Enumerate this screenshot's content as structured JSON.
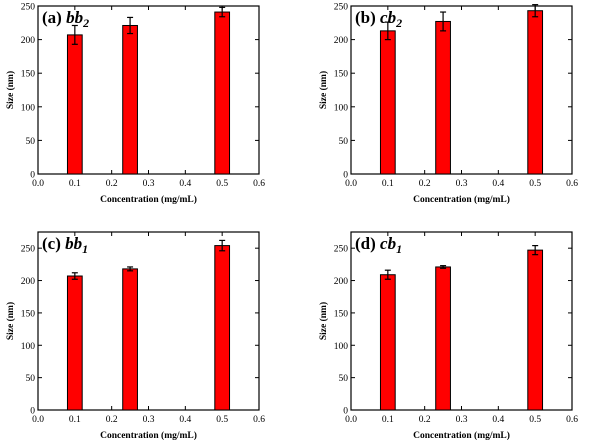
{
  "colors": {
    "bar": "#ff0000",
    "bar_edge": "#000000",
    "axis": "#000000",
    "background": "#ffffff"
  },
  "chart_data": [
    {
      "type": "bar",
      "title": {
        "prefix": "(a) ",
        "base": "bb",
        "subscript": "2"
      },
      "xlabel": "Concentration (mg/mL)",
      "ylabel": "Size (nm)",
      "xlim": [
        0.0,
        0.6
      ],
      "ylim": [
        0,
        250
      ],
      "xticks": [
        "0.0",
        "0.1",
        "0.2",
        "0.3",
        "0.4",
        "0.5",
        "0.6"
      ],
      "yticks": [
        "0",
        "50",
        "100",
        "150",
        "200",
        "250"
      ],
      "grid": false,
      "bar_width": 0.04,
      "x": [
        0.1,
        0.25,
        0.5
      ],
      "values": [
        207,
        221,
        241
      ],
      "errors": [
        14,
        12,
        7
      ]
    },
    {
      "type": "bar",
      "title": {
        "prefix": "(b) ",
        "base": "cb",
        "subscript": "2"
      },
      "xlabel": "Concentration (mg/mL)",
      "ylabel": "Size (nm)",
      "xlim": [
        0.0,
        0.6
      ],
      "ylim": [
        0,
        250
      ],
      "xticks": [
        "0.0",
        "0.1",
        "0.2",
        "0.3",
        "0.4",
        "0.5",
        "0.6"
      ],
      "yticks": [
        "0",
        "50",
        "100",
        "150",
        "200",
        "250"
      ],
      "grid": false,
      "bar_width": 0.04,
      "x": [
        0.1,
        0.25,
        0.5
      ],
      "values": [
        213,
        227,
        243
      ],
      "errors": [
        13,
        14,
        9
      ]
    },
    {
      "type": "bar",
      "title": {
        "prefix": "(c) ",
        "base": "bb",
        "subscript": "1"
      },
      "xlabel": "Concentration (mg/mL)",
      "ylabel": "Size (nm)",
      "xlim": [
        0.0,
        0.6
      ],
      "ylim": [
        0,
        275
      ],
      "xticks": [
        "0.0",
        "0.1",
        "0.2",
        "0.3",
        "0.4",
        "0.5",
        "0.6"
      ],
      "yticks": [
        "0",
        "50",
        "100",
        "150",
        "200",
        "250"
      ],
      "grid": false,
      "bar_width": 0.04,
      "x": [
        0.1,
        0.25,
        0.5
      ],
      "values": [
        207,
        218,
        254
      ],
      "errors": [
        5,
        3,
        8
      ]
    },
    {
      "type": "bar",
      "title": {
        "prefix": "(d) ",
        "base": "cb",
        "subscript": "1"
      },
      "xlabel": "Concentration (mg/mL)",
      "ylabel": "Size (nm)",
      "xlim": [
        0.0,
        0.6
      ],
      "ylim": [
        0,
        275
      ],
      "xticks": [
        "0.0",
        "0.1",
        "0.2",
        "0.3",
        "0.4",
        "0.5",
        "0.6"
      ],
      "yticks": [
        "0",
        "50",
        "100",
        "150",
        "200",
        "250"
      ],
      "grid": false,
      "bar_width": 0.04,
      "x": [
        0.1,
        0.25,
        0.5
      ],
      "values": [
        209,
        221,
        247
      ],
      "errors": [
        7,
        2,
        7
      ]
    }
  ]
}
